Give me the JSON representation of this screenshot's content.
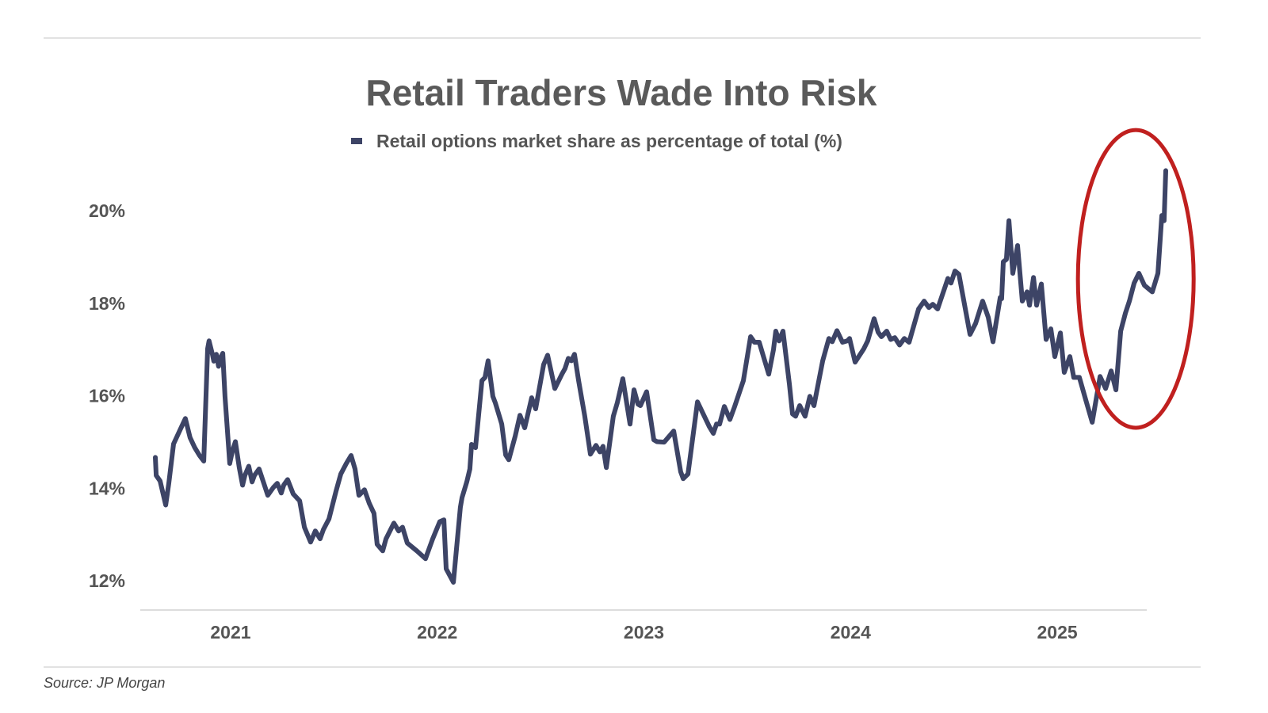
{
  "chart_data": {
    "type": "line",
    "title": "Retail Traders Wade Into Risk",
    "legend": [
      {
        "label": "Retail options market share as percentage of total (%)",
        "color": "#3d4466"
      }
    ],
    "legend_position": "top-center",
    "xlabel": "",
    "ylabel": "",
    "x_ticks": [
      {
        "value": 2021,
        "label": "2021"
      },
      {
        "value": 2022,
        "label": "2022"
      },
      {
        "value": 2023,
        "label": "2023"
      },
      {
        "value": 2024,
        "label": "2024"
      },
      {
        "value": 2025,
        "label": "2025"
      }
    ],
    "y_ticks": [
      {
        "value": 12,
        "label": "12%"
      },
      {
        "value": 14,
        "label": "14%"
      },
      {
        "value": 16,
        "label": "16%"
      },
      {
        "value": 18,
        "label": "18%"
      },
      {
        "value": 20,
        "label": "20%"
      }
    ],
    "xlim": [
      2020.563,
      2025.433
    ],
    "ylim": [
      11.37,
      21
    ],
    "grid": false,
    "annotation": {
      "type": "ellipse",
      "color": "#c0201f",
      "center": [
        2025.38,
        18.53
      ],
      "half_width_years": 0.28,
      "half_height_pct": 3.22
    },
    "series": [
      {
        "name": "Retail options market share as percentage of total (%)",
        "color": "#3d4466",
        "points": [
          [
            2020.636,
            14.67
          ],
          [
            2020.64,
            14.28
          ],
          [
            2020.659,
            14.16
          ],
          [
            2020.686,
            13.64
          ],
          [
            2020.701,
            14.11
          ],
          [
            2020.724,
            14.96
          ],
          [
            2020.751,
            15.22
          ],
          [
            2020.781,
            15.51
          ],
          [
            2020.804,
            15.1
          ],
          [
            2020.827,
            14.88
          ],
          [
            2020.85,
            14.71
          ],
          [
            2020.87,
            14.59
          ],
          [
            2020.889,
            17.02
          ],
          [
            2020.896,
            17.19
          ],
          [
            2020.912,
            16.9
          ],
          [
            2020.919,
            16.75
          ],
          [
            2020.931,
            16.9
          ],
          [
            2020.942,
            16.64
          ],
          [
            2020.954,
            16.85
          ],
          [
            2020.962,
            16.92
          ],
          [
            2020.973,
            15.99
          ],
          [
            2020.996,
            14.54
          ],
          [
            2021.008,
            14.79
          ],
          [
            2021.023,
            15.01
          ],
          [
            2021.042,
            14.45
          ],
          [
            2021.058,
            14.07
          ],
          [
            2021.069,
            14.28
          ],
          [
            2021.088,
            14.48
          ],
          [
            2021.104,
            14.14
          ],
          [
            2021.115,
            14.28
          ],
          [
            2021.138,
            14.42
          ],
          [
            2021.161,
            14.11
          ],
          [
            2021.18,
            13.85
          ],
          [
            2021.207,
            14.02
          ],
          [
            2021.226,
            14.11
          ],
          [
            2021.245,
            13.9
          ],
          [
            2021.257,
            14.07
          ],
          [
            2021.276,
            14.19
          ],
          [
            2021.303,
            13.88
          ],
          [
            2021.334,
            13.73
          ],
          [
            2021.357,
            13.16
          ],
          [
            2021.387,
            12.84
          ],
          [
            2021.41,
            13.08
          ],
          [
            2021.433,
            12.91
          ],
          [
            2021.449,
            13.11
          ],
          [
            2021.476,
            13.34
          ],
          [
            2021.51,
            13.94
          ],
          [
            2021.533,
            14.31
          ],
          [
            2021.56,
            14.54
          ],
          [
            2021.583,
            14.71
          ],
          [
            2021.602,
            14.42
          ],
          [
            2021.621,
            13.85
          ],
          [
            2021.648,
            13.97
          ],
          [
            2021.671,
            13.68
          ],
          [
            2021.694,
            13.46
          ],
          [
            2021.709,
            12.79
          ],
          [
            2021.736,
            12.65
          ],
          [
            2021.752,
            12.91
          ],
          [
            2021.79,
            13.25
          ],
          [
            2021.813,
            13.08
          ],
          [
            2021.832,
            13.16
          ],
          [
            2021.855,
            12.82
          ],
          [
            2021.901,
            12.65
          ],
          [
            2021.943,
            12.48
          ],
          [
            2021.978,
            12.91
          ],
          [
            2022.012,
            13.28
          ],
          [
            2022.032,
            13.32
          ],
          [
            2022.043,
            12.26
          ],
          [
            2022.078,
            11.97
          ],
          [
            2022.112,
            13.59
          ],
          [
            2022.12,
            13.8
          ],
          [
            2022.143,
            14.14
          ],
          [
            2022.158,
            14.42
          ],
          [
            2022.166,
            14.95
          ],
          [
            2022.185,
            14.88
          ],
          [
            2022.216,
            16.33
          ],
          [
            2022.231,
            16.4
          ],
          [
            2022.246,
            16.76
          ],
          [
            2022.269,
            15.99
          ],
          [
            2022.281,
            15.85
          ],
          [
            2022.312,
            15.39
          ],
          [
            2022.331,
            14.72
          ],
          [
            2022.346,
            14.62
          ],
          [
            2022.377,
            15.13
          ],
          [
            2022.4,
            15.58
          ],
          [
            2022.423,
            15.31
          ],
          [
            2022.457,
            15.96
          ],
          [
            2022.476,
            15.72
          ],
          [
            2022.515,
            16.68
          ],
          [
            2022.534,
            16.88
          ],
          [
            2022.569,
            16.16
          ],
          [
            2022.603,
            16.47
          ],
          [
            2022.618,
            16.59
          ],
          [
            2022.634,
            16.81
          ],
          [
            2022.649,
            16.76
          ],
          [
            2022.664,
            16.9
          ],
          [
            2022.684,
            16.33
          ],
          [
            2022.714,
            15.56
          ],
          [
            2022.741,
            14.74
          ],
          [
            2022.768,
            14.93
          ],
          [
            2022.787,
            14.79
          ],
          [
            2022.802,
            14.91
          ],
          [
            2022.818,
            14.45
          ],
          [
            2022.852,
            15.56
          ],
          [
            2022.871,
            15.85
          ],
          [
            2022.898,
            16.37
          ],
          [
            2022.933,
            15.39
          ],
          [
            2022.952,
            16.13
          ],
          [
            2022.971,
            15.82
          ],
          [
            2022.983,
            15.79
          ],
          [
            2023.013,
            16.09
          ],
          [
            2023.048,
            15.05
          ],
          [
            2023.063,
            15.01
          ],
          [
            2023.098,
            15.0
          ],
          [
            2023.144,
            15.24
          ],
          [
            2023.178,
            14.36
          ],
          [
            2023.19,
            14.21
          ],
          [
            2023.213,
            14.31
          ],
          [
            2023.259,
            15.87
          ],
          [
            2023.316,
            15.34
          ],
          [
            2023.336,
            15.19
          ],
          [
            2023.351,
            15.39
          ],
          [
            2023.366,
            15.39
          ],
          [
            2023.389,
            15.77
          ],
          [
            2023.416,
            15.49
          ],
          [
            2023.439,
            15.77
          ],
          [
            2023.481,
            16.33
          ],
          [
            2023.516,
            17.28
          ],
          [
            2023.535,
            17.16
          ],
          [
            2023.558,
            17.16
          ],
          [
            2023.604,
            16.47
          ],
          [
            2023.627,
            17.0
          ],
          [
            2023.638,
            17.4
          ],
          [
            2023.654,
            17.19
          ],
          [
            2023.673,
            17.4
          ],
          [
            2023.704,
            16.25
          ],
          [
            2023.719,
            15.61
          ],
          [
            2023.734,
            15.56
          ],
          [
            2023.754,
            15.79
          ],
          [
            2023.78,
            15.56
          ],
          [
            2023.803,
            15.99
          ],
          [
            2023.823,
            15.79
          ],
          [
            2023.865,
            16.76
          ],
          [
            2023.895,
            17.24
          ],
          [
            2023.911,
            17.17
          ],
          [
            2023.934,
            17.41
          ],
          [
            2023.961,
            17.16
          ],
          [
            2023.984,
            17.19
          ],
          [
            2023.995,
            17.24
          ],
          [
            2024.022,
            16.73
          ],
          [
            2024.064,
            17.02
          ],
          [
            2024.083,
            17.19
          ],
          [
            2024.114,
            17.67
          ],
          [
            2024.133,
            17.38
          ],
          [
            2024.149,
            17.28
          ],
          [
            2024.175,
            17.4
          ],
          [
            2024.194,
            17.22
          ],
          [
            2024.214,
            17.26
          ],
          [
            2024.237,
            17.1
          ],
          [
            2024.26,
            17.24
          ],
          [
            2024.283,
            17.16
          ],
          [
            2024.329,
            17.88
          ],
          [
            2024.356,
            18.05
          ],
          [
            2024.379,
            17.91
          ],
          [
            2024.398,
            17.98
          ],
          [
            2024.421,
            17.88
          ],
          [
            2024.471,
            18.54
          ],
          [
            2024.486,
            18.44
          ],
          [
            2024.505,
            18.7
          ],
          [
            2024.524,
            18.63
          ],
          [
            2024.578,
            17.33
          ],
          [
            2024.605,
            17.57
          ],
          [
            2024.639,
            18.05
          ],
          [
            2024.666,
            17.7
          ],
          [
            2024.689,
            17.17
          ],
          [
            2024.724,
            18.13
          ],
          [
            2024.731,
            18.1
          ],
          [
            2024.739,
            18.9
          ],
          [
            2024.754,
            18.95
          ],
          [
            2024.766,
            19.79
          ],
          [
            2024.785,
            18.65
          ],
          [
            2024.808,
            19.25
          ],
          [
            2024.831,
            18.05
          ],
          [
            2024.854,
            18.25
          ],
          [
            2024.866,
            17.96
          ],
          [
            2024.885,
            18.56
          ],
          [
            2024.9,
            17.96
          ],
          [
            2024.923,
            18.42
          ],
          [
            2024.946,
            17.22
          ],
          [
            2024.969,
            17.45
          ],
          [
            2024.988,
            16.85
          ],
          [
            2025.015,
            17.36
          ],
          [
            2025.034,
            16.51
          ],
          [
            2025.061,
            16.85
          ],
          [
            2025.08,
            16.4
          ],
          [
            2025.107,
            16.4
          ],
          [
            2025.138,
            15.91
          ],
          [
            2025.169,
            15.43
          ],
          [
            2025.207,
            16.42
          ],
          [
            2025.234,
            16.16
          ],
          [
            2025.261,
            16.54
          ],
          [
            2025.284,
            16.13
          ],
          [
            2025.307,
            17.4
          ],
          [
            2025.33,
            17.79
          ],
          [
            2025.349,
            18.05
          ],
          [
            2025.372,
            18.44
          ],
          [
            2025.395,
            18.65
          ],
          [
            2025.422,
            18.39
          ],
          [
            2025.46,
            18.25
          ],
          [
            2025.487,
            18.65
          ],
          [
            2025.506,
            19.9
          ],
          [
            2025.517,
            19.79
          ],
          [
            2025.525,
            20.87
          ]
        ]
      }
    ],
    "source": "Source: JP Morgan"
  }
}
